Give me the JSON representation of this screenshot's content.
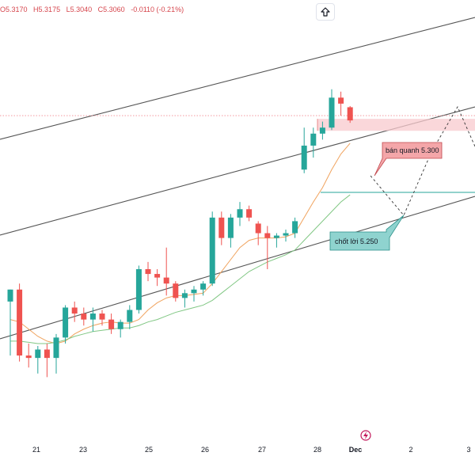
{
  "header": {
    "open": "O5.3170",
    "high": "H5.3175",
    "low": "L5.3040",
    "close": "C5.3060",
    "change": "-0.0110 (-0.21%)"
  },
  "icons": {
    "share": "arrow-up-icon",
    "event": "lightning-event-icon"
  },
  "colors": {
    "up": "#26a69a",
    "down": "#ef5350",
    "ema_fast": "#f0a35e",
    "ema_slow": "#81c784",
    "channel": "#555555",
    "zone": "#f8c9cd",
    "callout_sell": "#f4a6a9",
    "callout_take": "#8fd3cf"
  },
  "annotations": {
    "sell_label": "bán quanh 5.300",
    "take_profit_label": "chốt lời 5.250"
  },
  "chart_data": {
    "type": "candlestick",
    "x_ticks": [
      "21",
      "23",
      "25",
      "26",
      "27",
      "28",
      "Dec",
      "2",
      "3"
    ],
    "candles": [
      {
        "o": 5.155,
        "h": 5.165,
        "l": 5.11,
        "c": 5.165
      },
      {
        "o": 5.165,
        "h": 5.17,
        "l": 5.105,
        "c": 5.11
      },
      {
        "o": 5.11,
        "h": 5.12,
        "l": 5.1,
        "c": 5.108
      },
      {
        "o": 5.108,
        "h": 5.118,
        "l": 5.095,
        "c": 5.115
      },
      {
        "o": 5.115,
        "h": 5.12,
        "l": 5.092,
        "c": 5.108
      },
      {
        "o": 5.108,
        "h": 5.128,
        "l": 5.095,
        "c": 5.125
      },
      {
        "o": 5.125,
        "h": 5.152,
        "l": 5.12,
        "c": 5.15
      },
      {
        "o": 5.15,
        "h": 5.155,
        "l": 5.138,
        "c": 5.145
      },
      {
        "o": 5.145,
        "h": 5.15,
        "l": 5.135,
        "c": 5.14
      },
      {
        "o": 5.14,
        "h": 5.15,
        "l": 5.13,
        "c": 5.145
      },
      {
        "o": 5.145,
        "h": 5.148,
        "l": 5.135,
        "c": 5.14
      },
      {
        "o": 5.14,
        "h": 5.145,
        "l": 5.128,
        "c": 5.132
      },
      {
        "o": 5.132,
        "h": 5.14,
        "l": 5.125,
        "c": 5.138
      },
      {
        "o": 5.138,
        "h": 5.152,
        "l": 5.132,
        "c": 5.148
      },
      {
        "o": 5.148,
        "h": 5.185,
        "l": 5.145,
        "c": 5.182
      },
      {
        "o": 5.182,
        "h": 5.188,
        "l": 5.172,
        "c": 5.178
      },
      {
        "o": 5.178,
        "h": 5.182,
        "l": 5.168,
        "c": 5.175
      },
      {
        "o": 5.175,
        "h": 5.2,
        "l": 5.16,
        "c": 5.17
      },
      {
        "o": 5.17,
        "h": 5.172,
        "l": 5.155,
        "c": 5.158
      },
      {
        "o": 5.158,
        "h": 5.165,
        "l": 5.15,
        "c": 5.162
      },
      {
        "o": 5.162,
        "h": 5.168,
        "l": 5.155,
        "c": 5.165
      },
      {
        "o": 5.165,
        "h": 5.172,
        "l": 5.16,
        "c": 5.17
      },
      {
        "o": 5.17,
        "h": 5.23,
        "l": 5.168,
        "c": 5.225
      },
      {
        "o": 5.225,
        "h": 5.23,
        "l": 5.202,
        "c": 5.208
      },
      {
        "o": 5.208,
        "h": 5.228,
        "l": 5.2,
        "c": 5.225
      },
      {
        "o": 5.225,
        "h": 5.238,
        "l": 5.218,
        "c": 5.232
      },
      {
        "o": 5.232,
        "h": 5.235,
        "l": 5.222,
        "c": 5.225
      },
      {
        "o": 5.22,
        "h": 5.222,
        "l": 5.202,
        "c": 5.212
      },
      {
        "o": 5.212,
        "h": 5.218,
        "l": 5.182,
        "c": 5.208
      },
      {
        "o": 5.208,
        "h": 5.212,
        "l": 5.2,
        "c": 5.21
      },
      {
        "o": 5.21,
        "h": 5.215,
        "l": 5.205,
        "c": 5.212
      },
      {
        "o": 5.212,
        "h": 5.225,
        "l": 5.208,
        "c": 5.222
      },
      {
        "o": 5.265,
        "h": 5.3,
        "l": 5.262,
        "c": 5.285
      },
      {
        "o": 5.285,
        "h": 5.3,
        "l": 5.275,
        "c": 5.295
      },
      {
        "o": 5.295,
        "h": 5.305,
        "l": 5.29,
        "c": 5.3
      },
      {
        "o": 5.3,
        "h": 5.332,
        "l": 5.298,
        "c": 5.325
      },
      {
        "o": 5.325,
        "h": 5.33,
        "l": 5.31,
        "c": 5.32
      },
      {
        "o": 5.317,
        "h": 5.318,
        "l": 5.304,
        "c": 5.306
      }
    ],
    "ema_fast": [
      5.14,
      5.138,
      5.132,
      5.126,
      5.122,
      5.12,
      5.122,
      5.128,
      5.132,
      5.135,
      5.137,
      5.138,
      5.137,
      5.137,
      5.14,
      5.148,
      5.154,
      5.158,
      5.16,
      5.16,
      5.161,
      5.162,
      5.17,
      5.18,
      5.19,
      5.2,
      5.206,
      5.208,
      5.208,
      5.208,
      5.209,
      5.212,
      5.225,
      5.238,
      5.25,
      5.265,
      5.278,
      5.287
    ],
    "ema_slow": [
      5.122,
      5.122,
      5.121,
      5.12,
      5.12,
      5.121,
      5.123,
      5.126,
      5.128,
      5.13,
      5.131,
      5.132,
      5.133,
      5.133,
      5.135,
      5.138,
      5.14,
      5.143,
      5.146,
      5.148,
      5.15,
      5.152,
      5.156,
      5.162,
      5.168,
      5.174,
      5.18,
      5.184,
      5.188,
      5.191,
      5.194,
      5.198,
      5.206,
      5.214,
      5.222,
      5.23,
      5.238,
      5.244
    ],
    "sell_zone": [
      5.3,
      5.306
    ],
    "sell_level": 5.3,
    "take_profit_level": 5.25,
    "horizontal_level": 5.31,
    "ylim": [
      5.05,
      5.38
    ]
  }
}
